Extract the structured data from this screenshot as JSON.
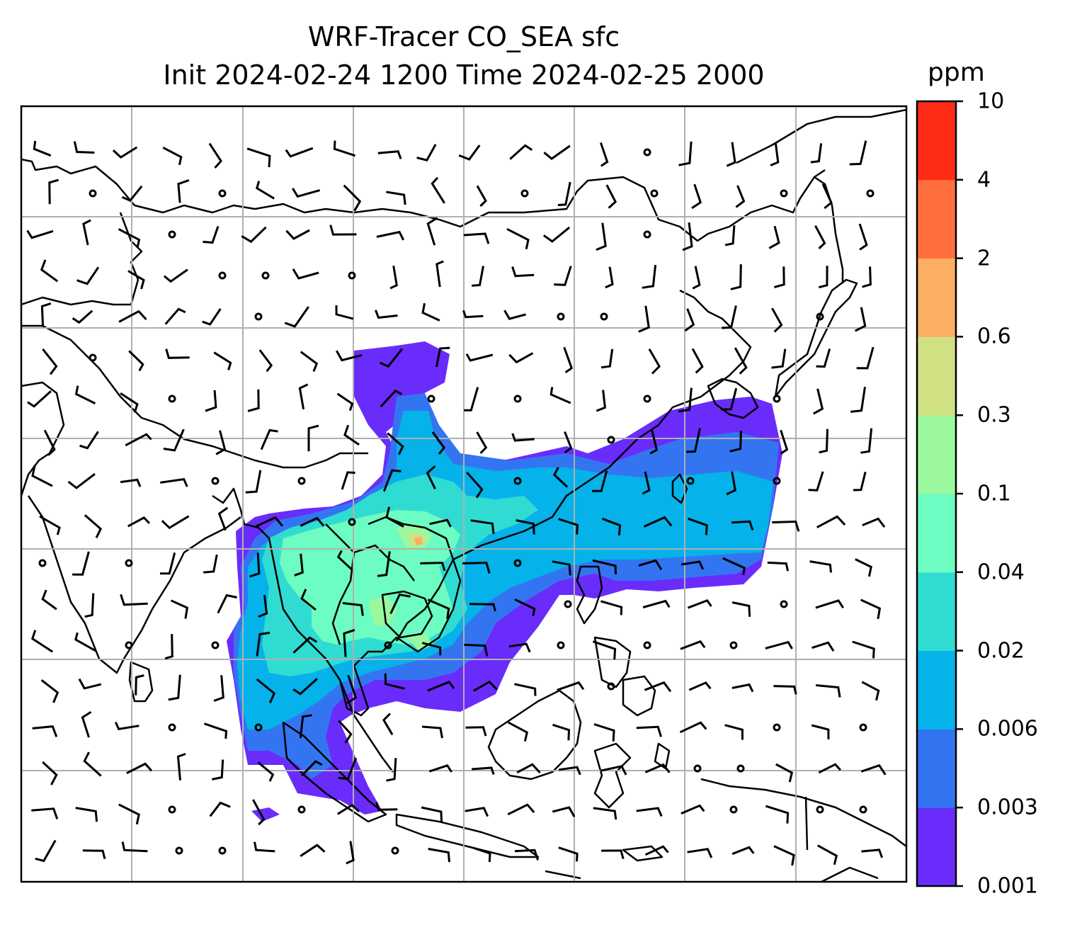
{
  "title": {
    "line1": "WRF-Tracer CO_SEA sfc",
    "line2": "Init 2024-02-24 1200 Time 2024-02-25 2000"
  },
  "colorbar": {
    "unit": "ppm",
    "levels": [
      "0.001",
      "0.003",
      "0.006",
      "0.02",
      "0.04",
      "0.1",
      "0.3",
      "0.6",
      "2",
      "4",
      "10"
    ],
    "colors": [
      "#6a2cfb",
      "#3375f1",
      "#05b2ea",
      "#30dcd2",
      "#6dfcc1",
      "#9cf89e",
      "#d0e184",
      "#fcae61",
      "#ff6f3d",
      "#ff2c17"
    ]
  },
  "map": {
    "region": "East and Southeast Asia",
    "field": "CO_SEA surface tracer concentration",
    "wind_barbs": true,
    "gridlines": true
  }
}
